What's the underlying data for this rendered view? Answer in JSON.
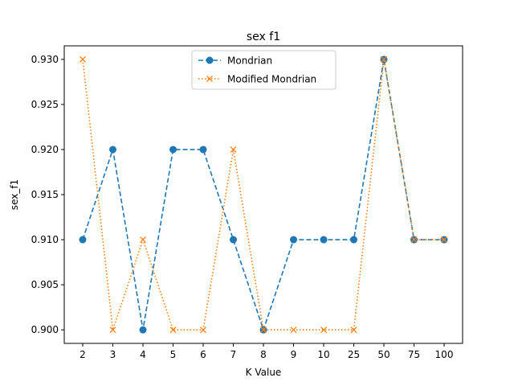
{
  "chart_data": {
    "type": "line",
    "title": "sex f1",
    "xlabel": "K Value",
    "ylabel": "sex_f1",
    "categories": [
      "2",
      "3",
      "4",
      "5",
      "6",
      "7",
      "8",
      "9",
      "10",
      "25",
      "50",
      "75",
      "100"
    ],
    "ylim": [
      0.8985,
      0.9315
    ],
    "yticks": [
      "0.900",
      "0.905",
      "0.910",
      "0.915",
      "0.920",
      "0.925",
      "0.930"
    ],
    "grid": false,
    "legend_position": "top-center",
    "series": [
      {
        "name": "Mondrian",
        "values": [
          0.91,
          0.92,
          0.9,
          0.92,
          0.92,
          0.91,
          0.9,
          0.91,
          0.91,
          0.91,
          0.93,
          0.91,
          0.91
        ],
        "color": "#1f77b4",
        "line_style": "dashed",
        "marker": "circle"
      },
      {
        "name": "Modified Mondrian",
        "values": [
          0.93,
          0.9,
          0.91,
          0.9,
          0.9,
          0.92,
          0.9,
          0.9,
          0.9,
          0.9,
          0.93,
          0.91,
          0.91
        ],
        "color": "#ff7f0e",
        "line_style": "dotted",
        "marker": "x"
      }
    ]
  }
}
